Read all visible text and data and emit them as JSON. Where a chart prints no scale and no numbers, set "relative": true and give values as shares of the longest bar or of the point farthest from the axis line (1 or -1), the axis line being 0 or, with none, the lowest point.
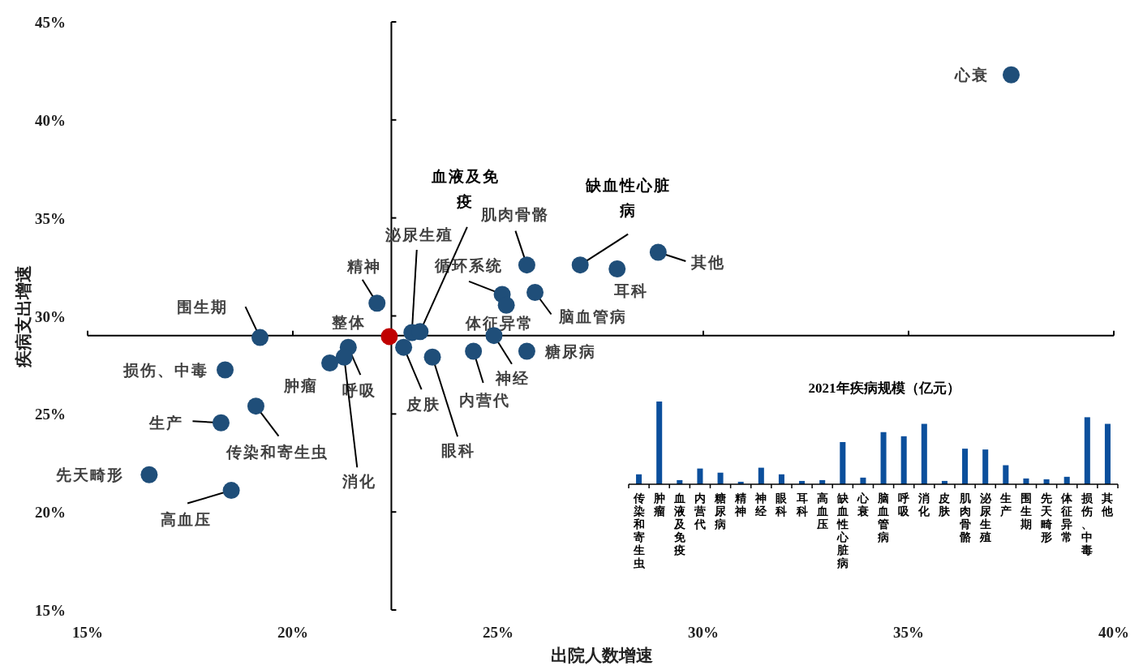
{
  "chart_data": [
    {
      "type": "scatter",
      "xlabel": "出院人数增速",
      "ylabel": "疾病支出增速",
      "marker": "circle",
      "grid": false,
      "x": [
        37.5,
        28.9,
        27.9,
        27.0,
        25.7,
        25.9,
        25.1,
        25.2,
        25.7,
        24.9,
        24.4,
        23.4,
        22.7,
        22.9,
        23.1,
        22.05,
        22.35,
        21.35,
        21.25,
        20.9,
        19.2,
        18.35,
        19.1,
        18.25,
        16.5,
        18.5
      ],
      "values": [
        42.3,
        33.25,
        32.4,
        32.6,
        32.6,
        31.2,
        31.1,
        30.55,
        28.2,
        29.0,
        28.2,
        27.9,
        28.4,
        29.15,
        29.2,
        30.65,
        28.95,
        28.4,
        27.9,
        27.6,
        28.9,
        27.25,
        25.4,
        24.55,
        21.9,
        21.1
      ],
      "colors": [
        "#1f4e79",
        "#1f4e79",
        "#1f4e79",
        "#1f4e79",
        "#1f4e79",
        "#1f4e79",
        "#1f4e79",
        "#1f4e79",
        "#1f4e79",
        "#1f4e79",
        "#1f4e79",
        "#1f4e79",
        "#1f4e79",
        "#1f4e79",
        "#1f4e79",
        "#1f4e79",
        "#c00000",
        "#1f4e79",
        "#1f4e79",
        "#1f4e79",
        "#1f4e79",
        "#1f4e79",
        "#1f4e79",
        "#1f4e79",
        "#1f4e79",
        "#1f4e79"
      ],
      "xlim": [
        15,
        40
      ],
      "ylim": [
        15,
        45
      ],
      "xticks": [
        {
          "value": 15,
          "label": "15%"
        },
        {
          "value": 20,
          "label": "20%"
        },
        {
          "value": 25,
          "label": "25%"
        },
        {
          "value": 30,
          "label": "30%"
        },
        {
          "value": 35,
          "label": "35%"
        },
        {
          "value": 40,
          "label": "40%"
        }
      ],
      "yticks": [
        {
          "value": 15,
          "label": "15%"
        },
        {
          "value": 20,
          "label": "20%"
        },
        {
          "value": 25,
          "label": "25%"
        },
        {
          "value": 30,
          "label": "30%"
        },
        {
          "value": 35,
          "label": "35%"
        },
        {
          "value": 40,
          "label": "40%"
        },
        {
          "value": 45,
          "label": "45%"
        }
      ],
      "ref_lines": [
        {
          "axis": "x",
          "value": 22.4
        },
        {
          "axis": "y",
          "value": 29.0
        }
      ],
      "annotations": [
        {
          "text": "心衰",
          "x": 37.5,
          "y": 42.3
        },
        {
          "text": "其他",
          "x": 28.9,
          "y": 33.25
        },
        {
          "text": "耳科",
          "x": 27.9,
          "y": 32.4
        },
        {
          "text": "缺血性心脏病",
          "x": 27.0,
          "y": 32.6
        },
        {
          "text": "肌肉骨骼",
          "x": 25.7,
          "y": 32.6
        },
        {
          "text": "脑血管病",
          "x": 25.9,
          "y": 31.2
        },
        {
          "text": "循环系统",
          "x": 25.1,
          "y": 31.1
        },
        {
          "text": "体征异常",
          "x": 25.2,
          "y": 30.55
        },
        {
          "text": "糖尿病",
          "x": 25.7,
          "y": 28.2
        },
        {
          "text": "神经",
          "x": 24.9,
          "y": 29.0
        },
        {
          "text": "内营代",
          "x": 24.4,
          "y": 28.2
        },
        {
          "text": "眼科",
          "x": 23.4,
          "y": 27.9
        },
        {
          "text": "皮肤",
          "x": 22.7,
          "y": 28.4
        },
        {
          "text": "泌尿生殖",
          "x": 22.9,
          "y": 29.15
        },
        {
          "text": "血液及免疫",
          "x": 23.1,
          "y": 29.2
        },
        {
          "text": "精神",
          "x": 22.05,
          "y": 30.65
        },
        {
          "text": "整体",
          "x": 22.35,
          "y": 28.95
        },
        {
          "text": "呼吸",
          "x": 21.35,
          "y": 28.4
        },
        {
          "text": "消化",
          "x": 21.25,
          "y": 27.9
        },
        {
          "text": "肿瘤",
          "x": 20.9,
          "y": 27.6
        },
        {
          "text": "围生期",
          "x": 19.2,
          "y": 28.9
        },
        {
          "text": "损伤、中毒",
          "x": 18.35,
          "y": 27.25
        },
        {
          "text": "传染和寄生虫",
          "x": 19.1,
          "y": 25.4
        },
        {
          "text": "生产",
          "x": 18.25,
          "y": 24.55
        },
        {
          "text": "先天畸形",
          "x": 16.5,
          "y": 21.9
        },
        {
          "text": "高血压",
          "x": 18.5,
          "y": 21.1
        }
      ]
    },
    {
      "type": "bar",
      "title": "2021年疾病规模（亿元）",
      "relative": true,
      "color": "#0b4f9c",
      "categories": [
        "传染和寄生虫",
        "肿瘤",
        "血液及免疫",
        "内营代",
        "糖尿病",
        "精神",
        "神经",
        "眼科",
        "耳科",
        "高血压",
        "缺血性心脏病",
        "心衰",
        "脑血管病",
        "呼吸",
        "消化",
        "皮肤",
        "肌肉骨骼",
        "泌尿生殖",
        "生产",
        "围生期",
        "先天畸形",
        "体征异常",
        "损伤、中毒",
        "其他"
      ],
      "values": [
        0.12,
        1,
        0.05,
        0.19,
        0.14,
        0.03,
        0.2,
        0.12,
        0.04,
        0.05,
        0.51,
        0.08,
        0.63,
        0.58,
        0.73,
        0.04,
        0.43,
        0.42,
        0.23,
        0.07,
        0.06,
        0.09,
        0.81,
        0.73
      ]
    }
  ]
}
